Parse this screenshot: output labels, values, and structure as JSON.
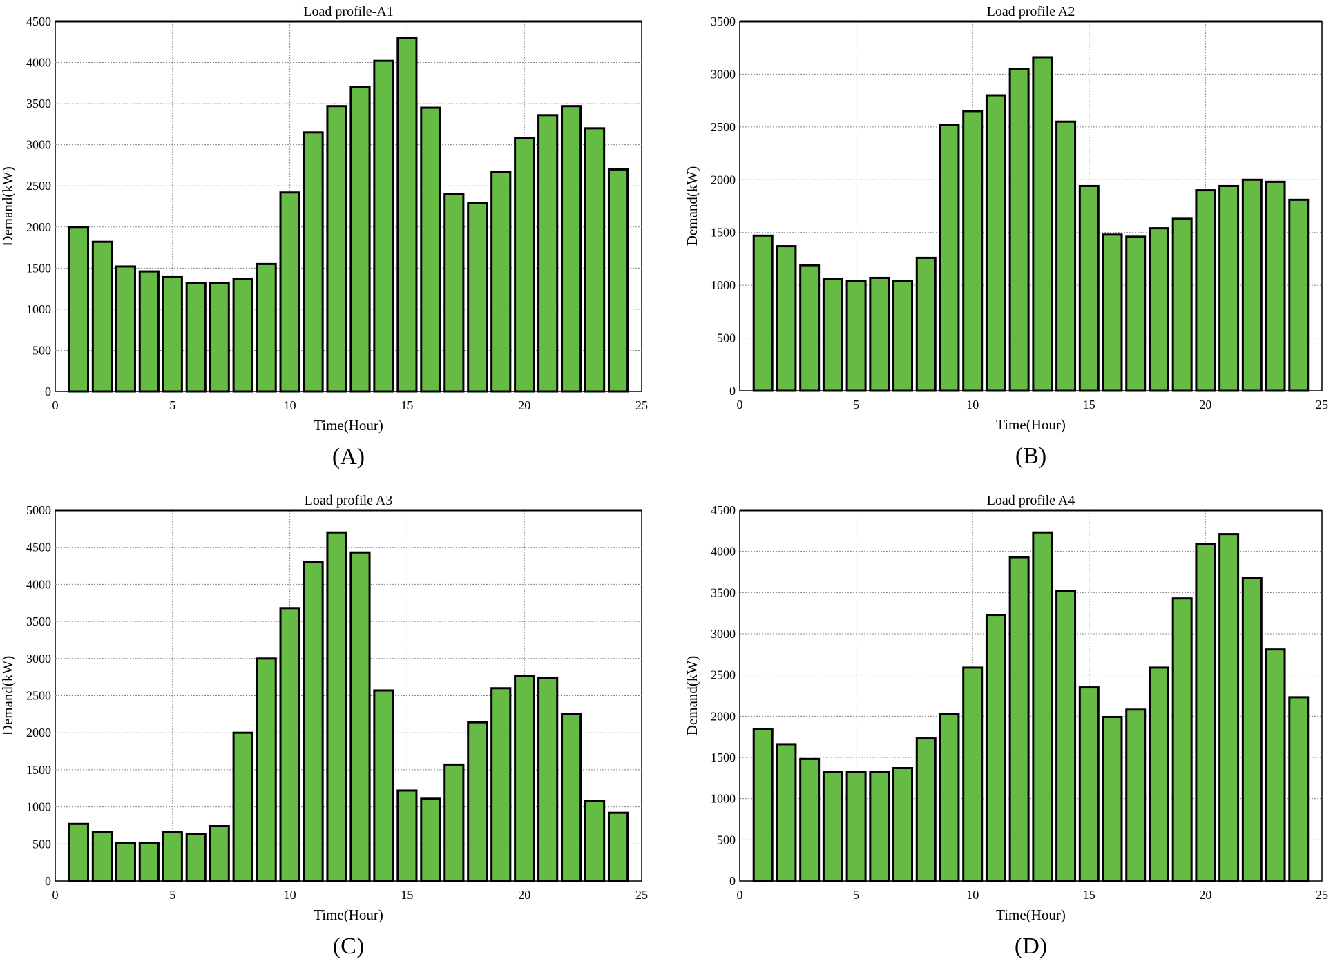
{
  "chart_data": [
    {
      "type": "bar",
      "panel_label": "(A)",
      "title": "Load profile-A1",
      "xlabel": "Time(Hour)",
      "ylabel": "Demand(kW)",
      "xlim": [
        0,
        25
      ],
      "ylim": [
        0,
        4500
      ],
      "xticks": [
        0,
        5,
        10,
        15,
        20,
        25
      ],
      "yticks": [
        0,
        500,
        1000,
        1500,
        2000,
        2500,
        3000,
        3500,
        4000,
        4500
      ],
      "grid": true,
      "x": [
        1,
        2,
        3,
        4,
        5,
        6,
        7,
        8,
        9,
        10,
        11,
        12,
        13,
        14,
        15,
        16,
        17,
        18,
        19,
        20,
        21,
        22,
        23,
        24
      ],
      "values": [
        2000,
        1820,
        1520,
        1460,
        1390,
        1320,
        1320,
        1370,
        1550,
        2420,
        3150,
        3470,
        3700,
        4020,
        4300,
        3450,
        2400,
        2290,
        2670,
        3080,
        3360,
        3470,
        3200,
        2700
      ]
    },
    {
      "type": "bar",
      "panel_label": "(B)",
      "title": "Load profile A2",
      "xlabel": "Time(Hour)",
      "ylabel": "Demand(kW)",
      "xlim": [
        0,
        25
      ],
      "ylim": [
        0,
        3500
      ],
      "xticks": [
        0,
        5,
        10,
        15,
        20,
        25
      ],
      "yticks": [
        0,
        500,
        1000,
        1500,
        2000,
        2500,
        3000,
        3500
      ],
      "grid": true,
      "x": [
        1,
        2,
        3,
        4,
        5,
        6,
        7,
        8,
        9,
        10,
        11,
        12,
        13,
        14,
        15,
        16,
        17,
        18,
        19,
        20,
        21,
        22,
        23,
        24
      ],
      "values": [
        1470,
        1370,
        1190,
        1060,
        1040,
        1070,
        1040,
        1260,
        2520,
        2650,
        2800,
        3050,
        3160,
        2550,
        1940,
        1480,
        1460,
        1540,
        1630,
        1900,
        1940,
        2000,
        1980,
        1810
      ]
    },
    {
      "type": "bar",
      "panel_label": "(C)",
      "title": "Load profile A3",
      "xlabel": "Time(Hour)",
      "ylabel": "Demand(kW)",
      "xlim": [
        0,
        25
      ],
      "ylim": [
        0,
        5000
      ],
      "xticks": [
        0,
        5,
        10,
        15,
        20,
        25
      ],
      "yticks": [
        0,
        500,
        1000,
        1500,
        2000,
        2500,
        3000,
        3500,
        4000,
        4500,
        5000
      ],
      "grid": true,
      "x": [
        1,
        2,
        3,
        4,
        5,
        6,
        7,
        8,
        9,
        10,
        11,
        12,
        13,
        14,
        15,
        16,
        17,
        18,
        19,
        20,
        21,
        22,
        23,
        24
      ],
      "values": [
        770,
        660,
        510,
        510,
        660,
        630,
        740,
        2000,
        3000,
        3680,
        4300,
        4700,
        4430,
        2570,
        1220,
        1110,
        1570,
        2140,
        2600,
        2770,
        2740,
        2250,
        1080,
        920
      ]
    },
    {
      "type": "bar",
      "panel_label": "(D)",
      "title": "Load profile A4",
      "xlabel": "Time(Hour)",
      "ylabel": "Demand(kW)",
      "xlim": [
        0,
        25
      ],
      "ylim": [
        0,
        4500
      ],
      "xticks": [
        0,
        5,
        10,
        15,
        20,
        25
      ],
      "yticks": [
        0,
        500,
        1000,
        1500,
        2000,
        2500,
        3000,
        3500,
        4000,
        4500
      ],
      "grid": true,
      "x": [
        1,
        2,
        3,
        4,
        5,
        6,
        7,
        8,
        9,
        10,
        11,
        12,
        13,
        14,
        15,
        16,
        17,
        18,
        19,
        20,
        21,
        22,
        23,
        24
      ],
      "values": [
        1840,
        1660,
        1480,
        1320,
        1320,
        1320,
        1370,
        1730,
        2030,
        2590,
        3230,
        3930,
        4230,
        3520,
        2350,
        1990,
        2080,
        2590,
        3430,
        4090,
        4210,
        3680,
        2810,
        2230
      ]
    }
  ],
  "colors": {
    "bar": "#66bb44",
    "edge": "#000000",
    "grid": "#888888"
  }
}
